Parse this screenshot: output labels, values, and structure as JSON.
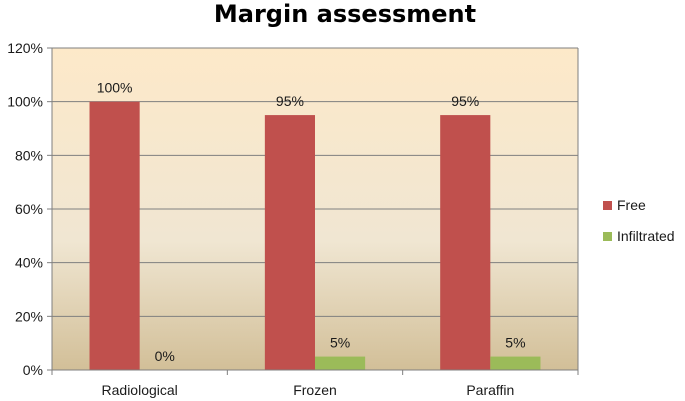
{
  "chart_data": {
    "type": "bar",
    "title": "Margin assessment",
    "xlabel": "",
    "ylabel": "",
    "categories": [
      "Radiological",
      "Frozen",
      "Paraffin"
    ],
    "series": [
      {
        "name": "Free",
        "values": [
          100,
          95,
          95
        ],
        "labels": [
          "100%",
          "95%",
          "95%"
        ],
        "color": "#c0504d"
      },
      {
        "name": "Infiltrated",
        "values": [
          0,
          5,
          5
        ],
        "labels": [
          "0%",
          "5%",
          "5%"
        ],
        "color": "#9bbb59"
      }
    ],
    "ylim": [
      0,
      120
    ],
    "yticks": [
      "0%",
      "20%",
      "40%",
      "60%",
      "80%",
      "100%",
      "120%"
    ],
    "grid": true,
    "legend": "right"
  }
}
